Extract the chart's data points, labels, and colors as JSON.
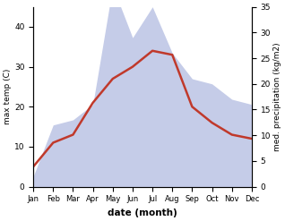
{
  "months": [
    "Jan",
    "Feb",
    "Mar",
    "Apr",
    "May",
    "Jun",
    "Jul",
    "Aug",
    "Sep",
    "Oct",
    "Nov",
    "Dec"
  ],
  "temperature": [
    5,
    11,
    13,
    21,
    27,
    30,
    34,
    33,
    20,
    16,
    13,
    12
  ],
  "precipitation": [
    2,
    12,
    13,
    16,
    39,
    29,
    35,
    26,
    21,
    20,
    17,
    16
  ],
  "temp_color": "#c0392b",
  "precip_fill_color": "#c5cce8",
  "temp_ylim": [
    0,
    45
  ],
  "precip_ylim": [
    0,
    35
  ],
  "temp_yticks": [
    0,
    10,
    20,
    30,
    40
  ],
  "precip_yticks": [
    0,
    5,
    10,
    15,
    20,
    25,
    30,
    35
  ],
  "ylabel_left": "max temp (C)",
  "ylabel_right": "med. precipitation (kg/m2)",
  "xlabel": "date (month)",
  "precip_scale_factor": 1.2857
}
